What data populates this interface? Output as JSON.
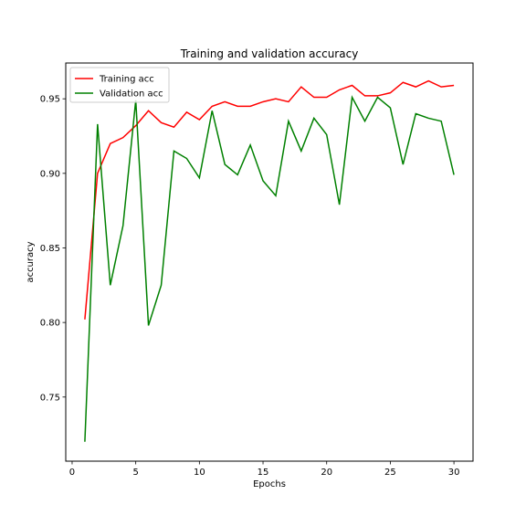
{
  "chart_data": {
    "type": "line",
    "title": "Training and validation accuracy",
    "xlabel": "Epochs",
    "ylabel": "accuracy",
    "xlim": [
      -0.5,
      31.5
    ],
    "ylim": [
      0.707,
      0.974
    ],
    "xticks": [
      0,
      5,
      10,
      15,
      20,
      25,
      30
    ],
    "yticks": [
      0.75,
      0.8,
      0.85,
      0.9,
      0.95
    ],
    "ytick_labels": [
      "0.75",
      "0.80",
      "0.85",
      "0.90",
      "0.95"
    ],
    "grid": false,
    "legend": "top-left",
    "x": [
      1,
      2,
      3,
      4,
      5,
      6,
      7,
      8,
      9,
      10,
      11,
      12,
      13,
      14,
      15,
      16,
      17,
      18,
      19,
      20,
      21,
      22,
      23,
      24,
      25,
      26,
      27,
      28,
      29,
      30
    ],
    "series": [
      {
        "name": "Training acc",
        "color": "#ff0000",
        "values": [
          0.802,
          0.9,
          0.92,
          0.924,
          0.932,
          0.942,
          0.934,
          0.931,
          0.941,
          0.936,
          0.945,
          0.948,
          0.945,
          0.945,
          0.948,
          0.95,
          0.948,
          0.958,
          0.951,
          0.951,
          0.956,
          0.959,
          0.952,
          0.952,
          0.954,
          0.961,
          0.958,
          0.962,
          0.958,
          0.959
        ]
      },
      {
        "name": "Validation acc",
        "color": "#008000",
        "values": [
          0.72,
          0.933,
          0.825,
          0.865,
          0.949,
          0.798,
          0.825,
          0.915,
          0.91,
          0.897,
          0.942,
          0.906,
          0.899,
          0.919,
          0.895,
          0.885,
          0.935,
          0.915,
          0.937,
          0.926,
          0.879,
          0.951,
          0.935,
          0.951,
          0.944,
          0.906,
          0.94,
          0.937,
          0.935,
          0.899
        ]
      }
    ]
  }
}
